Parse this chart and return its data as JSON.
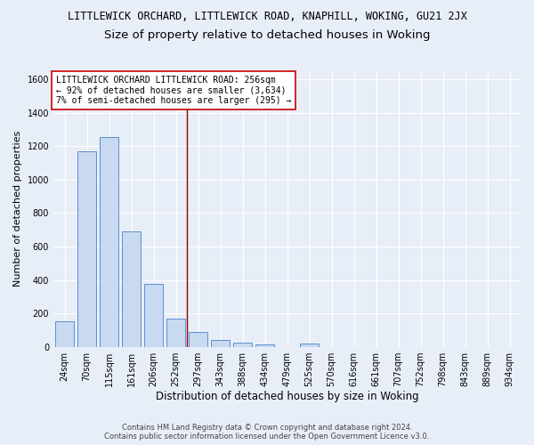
{
  "title_line1": "LITTLEWICK ORCHARD, LITTLEWICK ROAD, KNAPHILL, WOKING, GU21 2JX",
  "title_line2": "Size of property relative to detached houses in Woking",
  "xlabel": "Distribution of detached houses by size in Woking",
  "ylabel": "Number of detached properties",
  "footer1": "Contains HM Land Registry data © Crown copyright and database right 2024.",
  "footer2": "Contains public sector information licensed under the Open Government Licence v3.0.",
  "categories": [
    "24sqm",
    "70sqm",
    "115sqm",
    "161sqm",
    "206sqm",
    "252sqm",
    "297sqm",
    "343sqm",
    "388sqm",
    "434sqm",
    "479sqm",
    "525sqm",
    "570sqm",
    "616sqm",
    "661sqm",
    "707sqm",
    "752sqm",
    "798sqm",
    "843sqm",
    "889sqm",
    "934sqm"
  ],
  "values": [
    150,
    1170,
    1255,
    690,
    375,
    170,
    90,
    40,
    22,
    15,
    0,
    18,
    0,
    0,
    0,
    0,
    0,
    0,
    0,
    0,
    0
  ],
  "bar_color": "#c9d9f0",
  "bar_edge_color": "#5b8fd4",
  "vline_x_index": 5,
  "vline_color": "#8b0000",
  "annotation_text": "LITTLEWICK ORCHARD LITTLEWICK ROAD: 256sqm\n← 92% of detached houses are smaller (3,634)\n7% of semi-detached houses are larger (295) →",
  "annotation_box_color": "#ffffff",
  "annotation_border_color": "#cc0000",
  "ylim": [
    0,
    1650
  ],
  "yticks": [
    0,
    200,
    400,
    600,
    800,
    1000,
    1200,
    1400,
    1600
  ],
  "background_color": "#e8eef8",
  "grid_color": "#ffffff",
  "title1_fontsize": 8.5,
  "title2_fontsize": 9.5,
  "xlabel_fontsize": 8.5,
  "ylabel_fontsize": 8.0,
  "tick_fontsize": 7.0,
  "annotation_fontsize": 7.0,
  "footer_fontsize": 6.0
}
